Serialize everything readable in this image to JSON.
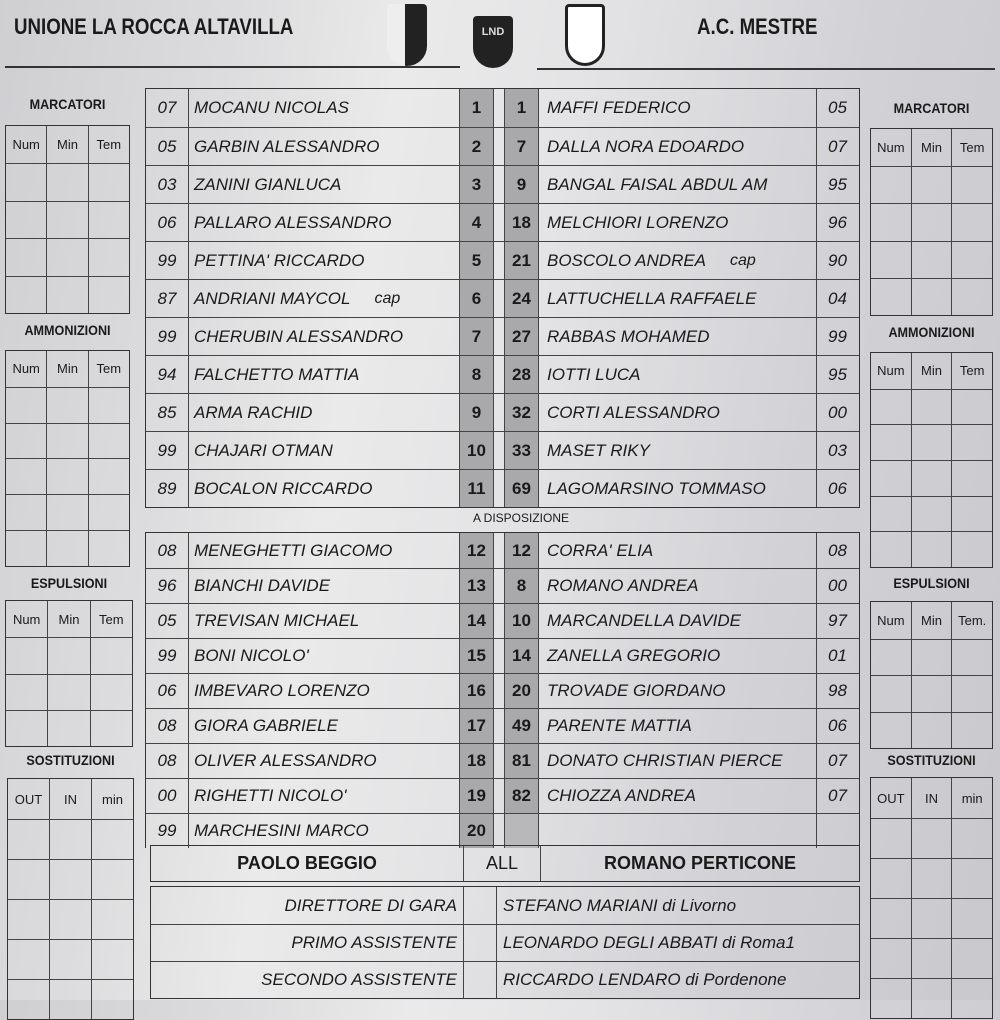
{
  "header": {
    "home_team": "UNIONE LA ROCCA ALTAVILLA",
    "away_team": "A.C. MESTRE",
    "center_logo_text": "LND"
  },
  "side": {
    "marcatori": "MARCATORI",
    "ammonizioni": "AMMONIZIONI",
    "espulsioni": "ESPULSIONI",
    "sostituzioni": "SOSTITUZIONI",
    "cols_left": [
      "Num",
      "Min",
      "Tem"
    ],
    "cols_right": [
      "Num",
      "Min",
      "Tem"
    ],
    "cols_esp_right": [
      "Num",
      "Min",
      "Tem."
    ],
    "cols_sost": [
      "OUT",
      "IN",
      "min"
    ]
  },
  "starters": [
    {
      "hy": "07",
      "hn": "MOCANU NICOLAS",
      "hnum": "1",
      "anum": "1",
      "an": "MAFFI FEDERICO",
      "ay": "05"
    },
    {
      "hy": "05",
      "hn": "GARBIN ALESSANDRO",
      "hnum": "2",
      "anum": "7",
      "an": "DALLA NORA EDOARDO",
      "ay": "07"
    },
    {
      "hy": "03",
      "hn": "ZANINI GIANLUCA",
      "hnum": "3",
      "anum": "9",
      "an": "BANGAL FAISAL ABDUL AM",
      "ay": "95"
    },
    {
      "hy": "06",
      "hn": "PALLARO ALESSANDRO",
      "hnum": "4",
      "anum": "18",
      "an": "MELCHIORI LORENZO",
      "ay": "96"
    },
    {
      "hy": "99",
      "hn": "PETTINA' RICCARDO",
      "hnum": "5",
      "anum": "21",
      "an": "BOSCOLO ANDREA",
      "acap": "cap",
      "ay": "90"
    },
    {
      "hy": "87",
      "hn": "ANDRIANI MAYCOL",
      "hcap": "cap",
      "hnum": "6",
      "anum": "24",
      "an": "LATTUCHELLA RAFFAELE",
      "ay": "04"
    },
    {
      "hy": "99",
      "hn": "CHERUBIN ALESSANDRO",
      "hnum": "7",
      "anum": "27",
      "an": "RABBAS MOHAMED",
      "ay": "99"
    },
    {
      "hy": "94",
      "hn": "FALCHETTO MATTIA",
      "hnum": "8",
      "anum": "28",
      "an": "IOTTI LUCA",
      "ay": "95"
    },
    {
      "hy": "85",
      "hn": "ARMA RACHID",
      "hnum": "9",
      "anum": "32",
      "an": "CORTI ALESSANDRO",
      "ay": "00"
    },
    {
      "hy": "99",
      "hn": "CHAJARI OTMAN",
      "hnum": "10",
      "anum": "33",
      "an": "MASET RIKY",
      "ay": "03"
    },
    {
      "hy": "89",
      "hn": "BOCALON RICCARDO",
      "hnum": "11",
      "anum": "69",
      "an": "LAGOMARSINO TOMMASO",
      "ay": "06"
    }
  ],
  "bench_label": "A DISPOSIZIONE",
  "bench": [
    {
      "hy": "08",
      "hn": "MENEGHETTI GIACOMO",
      "hnum": "12",
      "anum": "12",
      "an": "CORRA' ELIA",
      "ay": "08"
    },
    {
      "hy": "96",
      "hn": "BIANCHI DAVIDE",
      "hnum": "13",
      "anum": "8",
      "an": "ROMANO ANDREA",
      "ay": "00"
    },
    {
      "hy": "05",
      "hn": "TREVISAN MICHAEL",
      "hnum": "14",
      "anum": "10",
      "an": "MARCANDELLA DAVIDE",
      "ay": "97"
    },
    {
      "hy": "99",
      "hn": "BONI NICOLO'",
      "hnum": "15",
      "anum": "14",
      "an": "ZANELLA GREGORIO",
      "ay": "01"
    },
    {
      "hy": "06",
      "hn": "IMBEVARO LORENZO",
      "hnum": "16",
      "anum": "20",
      "an": "TROVADE GIORDANO",
      "ay": "98"
    },
    {
      "hy": "08",
      "hn": "GIORA GABRIELE",
      "hnum": "17",
      "anum": "49",
      "an": "PARENTE MATTIA",
      "ay": "06"
    },
    {
      "hy": "08",
      "hn": "OLIVER ALESSANDRO",
      "hnum": "18",
      "anum": "81",
      "an": "DONATO CHRISTIAN PIERCE",
      "ay": "07"
    },
    {
      "hy": "00",
      "hn": "RIGHETTI NICOLO'",
      "hnum": "19",
      "anum": "82",
      "an": "CHIOZZA ANDREA",
      "ay": "07"
    },
    {
      "hy": "99",
      "hn": "MARCHESINI MARCO",
      "hnum": "20",
      "anum": "",
      "an": "",
      "ay": ""
    }
  ],
  "coaches": {
    "home": "PAOLO BEGGIO",
    "label": "ALL",
    "away": "ROMANO PERTICONE"
  },
  "officials": [
    {
      "role": "DIRETTORE DI GARA",
      "name": "STEFANO MARIANI di Livorno"
    },
    {
      "role": "PRIMO ASSISTENTE",
      "name": "LEONARDO DEGLI ABBATI di Roma1"
    },
    {
      "role": "SECONDO ASSISTENTE",
      "name": "RICCARDO LENDARO di Pordenone"
    }
  ],
  "colors": {
    "number_cell": "#a9a9ab",
    "ink": "#1a1a1a"
  }
}
